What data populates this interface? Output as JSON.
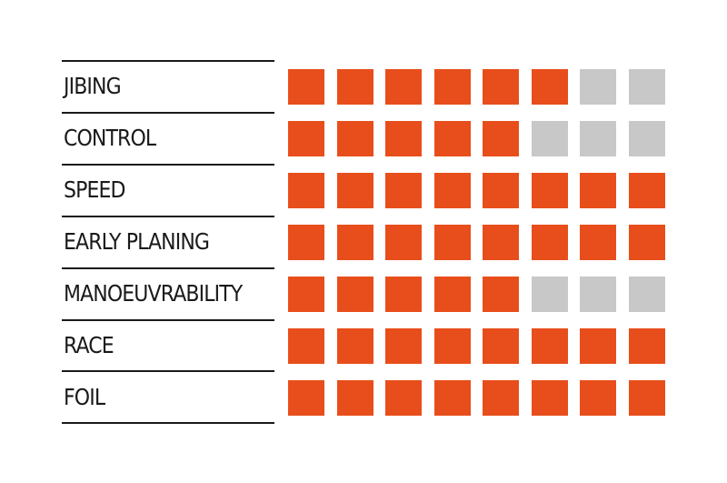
{
  "chart_data": {
    "type": "table",
    "title": "",
    "max_rating": 8,
    "categories": [
      "JIBING",
      "CONTROL",
      "SPEED",
      "EARLY PLANING",
      "MANOEUVRABILITY",
      "RACE",
      "FOIL"
    ],
    "values": [
      6,
      5,
      8,
      8,
      5,
      8,
      8
    ],
    "colors": {
      "filled": "#e84e1b",
      "empty": "#c8c8c8",
      "text": "#1a1a1a",
      "rule": "#1a1a1a"
    }
  }
}
